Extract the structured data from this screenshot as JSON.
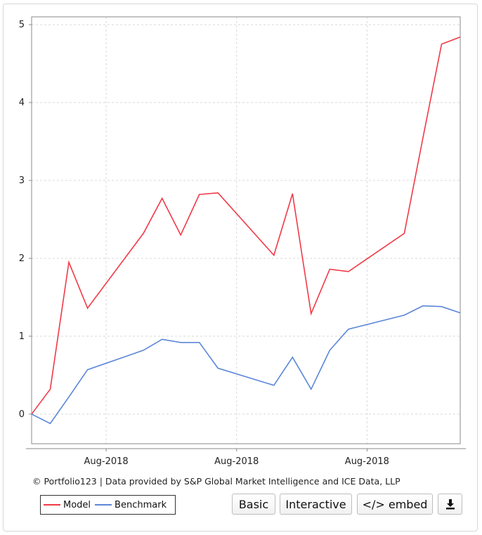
{
  "chart_data": {
    "type": "line",
    "title": "",
    "xlabel": "",
    "ylabel": "",
    "ylim": [
      -0.38,
      5.1
    ],
    "yticks": [
      0,
      1,
      2,
      3,
      4,
      5
    ],
    "xtick_labels": [
      "Aug-2018",
      "Aug-2018",
      "Aug-2018"
    ],
    "xtick_positions": [
      4,
      11,
      18
    ],
    "grid": true,
    "legend": "bottom-left",
    "x": [
      0,
      1,
      2,
      3,
      6,
      7,
      8,
      9,
      10,
      13,
      14,
      15,
      16,
      17,
      20,
      21,
      22,
      23
    ],
    "series": [
      {
        "name": "Model",
        "color": "#f03a47",
        "values": [
          0.0,
          0.32,
          1.95,
          1.36,
          2.32,
          2.77,
          2.3,
          2.82,
          2.84,
          2.04,
          2.83,
          1.29,
          1.86,
          1.83,
          2.32,
          3.55,
          4.75,
          4.84
        ]
      },
      {
        "name": "Benchmark",
        "color": "#5b86d8",
        "values": [
          0.0,
          -0.12,
          0.22,
          0.57,
          0.82,
          0.96,
          0.92,
          0.92,
          0.59,
          0.37,
          0.73,
          0.32,
          0.82,
          1.09,
          1.27,
          1.39,
          1.38,
          1.3
        ]
      }
    ]
  },
  "footer": {
    "credit": "© Portfolio123 | Data provided by S&P Global Market Intelligence and ICE Data, LLP"
  },
  "legend": {
    "model_label": "Model",
    "benchmark_label": "Benchmark"
  },
  "buttons": {
    "basic": "Basic",
    "interactive": "Interactive",
    "embed": "</> embed"
  },
  "icons": {
    "download": "download-icon"
  }
}
